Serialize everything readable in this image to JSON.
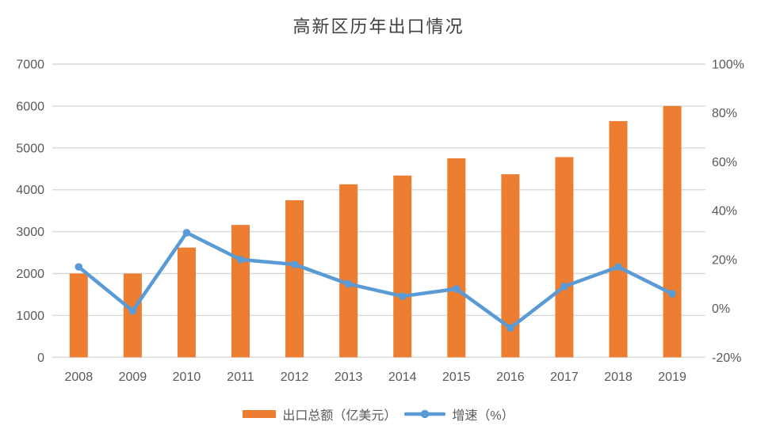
{
  "title": "高新区历年出口情况",
  "colors": {
    "bar": "#ED7D31",
    "line": "#5B9BD5",
    "gridline": "#D9D9D9",
    "axis_text": "#595959",
    "title_text": "#404040"
  },
  "chart_data": {
    "type": "bar",
    "subtype": "combo-bar-line-dual-axis",
    "title": "高新区历年出口情况",
    "categories": [
      "2008",
      "2009",
      "2010",
      "2011",
      "2012",
      "2013",
      "2014",
      "2015",
      "2016",
      "2017",
      "2018",
      "2019"
    ],
    "series": [
      {
        "name": "出口总额（亿美元）",
        "type": "bar",
        "axis": "left",
        "color": "#ED7D31",
        "values": [
          2000,
          2000,
          2620,
          3160,
          3750,
          4130,
          4340,
          4750,
          4370,
          4780,
          5640,
          6000
        ]
      },
      {
        "name": "增速（%）",
        "type": "line",
        "axis": "right",
        "color": "#5B9BD5",
        "values": [
          17,
          -1,
          31,
          20,
          18,
          10,
          5,
          8,
          -8,
          9,
          17,
          6
        ]
      }
    ],
    "left_axis": {
      "min": 0,
      "max": 7000,
      "step": 1000,
      "ticks": [
        "0",
        "1000",
        "2000",
        "3000",
        "4000",
        "5000",
        "6000",
        "7000"
      ]
    },
    "right_axis": {
      "min": -20,
      "max": 100,
      "step": 20,
      "ticks": [
        "-20%",
        "0%",
        "20%",
        "40%",
        "60%",
        "80%",
        "100%"
      ]
    },
    "grid": true,
    "legend_position": "bottom"
  }
}
